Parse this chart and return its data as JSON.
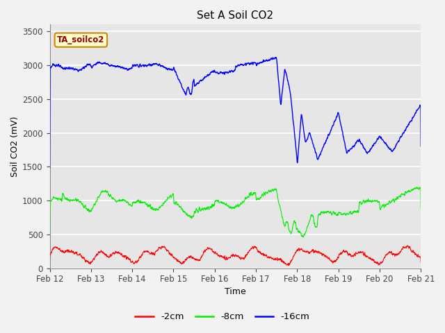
{
  "title": "Set A Soil CO2",
  "xlabel": "Time",
  "ylabel": "Soil CO2 (mV)",
  "legend_label": "TA_soilco2",
  "ylim": [
    0,
    3600
  ],
  "yticks": [
    0,
    500,
    1000,
    1500,
    2000,
    2500,
    3000,
    3500
  ],
  "line_colors": {
    "2cm": "#ff0000",
    "8cm": "#00ee00",
    "16cm": "#0000ff"
  },
  "legend_entries": [
    "-2cm",
    "-8cm",
    "-16cm"
  ],
  "fig_bg_color": "#f0f0f0",
  "plot_bg_color": "#e8e8e8",
  "x_tick_labels": [
    "Feb 12",
    "Feb 13",
    "Feb 14",
    "Feb 15",
    "Feb 16",
    "Feb 17",
    "Feb 18",
    "Feb 19",
    "Feb 20",
    "Feb 21"
  ]
}
